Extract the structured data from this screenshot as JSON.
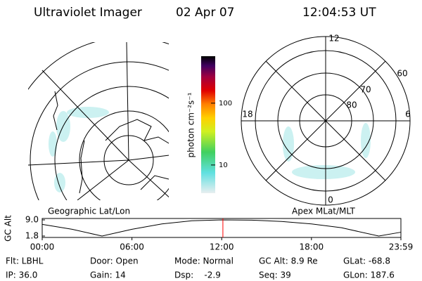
{
  "header": {
    "title": "Ultraviolet Imager",
    "date": "02 Apr 07",
    "time": "12:04:53 UT"
  },
  "left_map": {
    "label": "Geographic Lat/Lon"
  },
  "right_map": {
    "label": "Apex MLat/MLT",
    "mlt_labels": [
      "12",
      "6",
      "18",
      "0"
    ],
    "lat_labels": [
      "60",
      "70",
      "80"
    ]
  },
  "colorbar": {
    "label": "photon cm⁻²s⁻¹",
    "range": [
      3.5,
      575
    ],
    "log": true,
    "ticks": [
      10,
      100
    ]
  },
  "alt_plot": {
    "ylabel": "GC Alt",
    "ylim": [
      1.8,
      9.0
    ],
    "yticks": [
      {
        "value": 9.0,
        "label": "9.0"
      },
      {
        "value": 1.8,
        "label": "1.8"
      }
    ],
    "xlim": [
      0,
      23.98
    ],
    "xticks": [
      {
        "value": 0,
        "label": "00:00"
      },
      {
        "value": 6,
        "label": "06:00"
      },
      {
        "value": 12,
        "label": "12:00"
      },
      {
        "value": 18,
        "label": "18:00"
      },
      {
        "value": 23.98,
        "label": "23:59"
      }
    ],
    "x": [
      0,
      2,
      4,
      6,
      8,
      10,
      12,
      14,
      16,
      18,
      20,
      22.5,
      23.98
    ],
    "values": [
      7.0,
      4.8,
      1.8,
      4.8,
      7.2,
      8.6,
      9.0,
      8.9,
      8.3,
      7.2,
      5.5,
      1.8,
      3.5
    ],
    "marker_hours": 12.08,
    "line_color": "#000000",
    "marker_color": "#ff0000"
  },
  "footer": {
    "rows": [
      [
        "Flt: LBHL",
        "Door: Open",
        "Mode: Normal",
        "GC Alt: 8.9 Re",
        "GLat: -68.8"
      ],
      [
        "IP: 36.0",
        "Gain: 14",
        "Dsp:    -2.9",
        "Seq: 39",
        "GLon: 187.6"
      ]
    ]
  }
}
